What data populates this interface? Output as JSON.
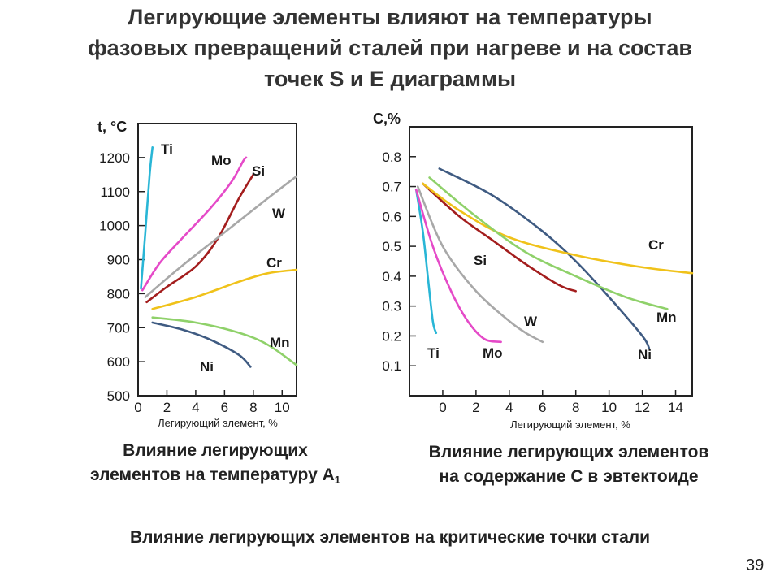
{
  "title": {
    "line1": "Легирующие элементы влияют на температуры",
    "line2": "фазовых превращений сталей при нагреве и на состав",
    "line3": "точек S и E диаграммы"
  },
  "caption_left": {
    "text": "Влияние легирующих",
    "text2": "элементов на температуру А",
    "sub": "1"
  },
  "caption_right": {
    "text": "Влияние легирующих элементов",
    "text2": "на содержание С в эвтектоиде"
  },
  "bottom_text": "Влияние легирующих элементов на критические точки стали",
  "page_number": "39",
  "chart_data": [
    {
      "type": "line",
      "ylabel": "t, °C",
      "xlabel": "Легирующий элемент, %",
      "xlim": [
        0,
        11
      ],
      "ylim": [
        500,
        1300
      ],
      "xticks": [
        "0",
        "2",
        "4",
        "6",
        "8",
        "10"
      ],
      "xtick_values": [
        0,
        2,
        4,
        6,
        8,
        10
      ],
      "yticks": [
        "500",
        "600",
        "700",
        "800",
        "900",
        "1000",
        "1100",
        "1200"
      ],
      "ytick_values": [
        500,
        600,
        700,
        800,
        900,
        1000,
        1100,
        1200
      ],
      "series": [
        {
          "name": "Ti",
          "color": "#29b6d6",
          "points": [
            [
              0.2,
              815
            ],
            [
              0.5,
              980
            ],
            [
              0.8,
              1150
            ],
            [
              1.0,
              1230
            ]
          ]
        },
        {
          "name": "Mo",
          "color": "#e54ac8",
          "points": [
            [
              0.3,
              810
            ],
            [
              1.5,
              890
            ],
            [
              3.0,
              960
            ],
            [
              5.0,
              1050
            ],
            [
              6.5,
              1130
            ],
            [
              7.3,
              1190
            ],
            [
              7.5,
              1200
            ]
          ]
        },
        {
          "name": "Si",
          "color": "#a31d1d",
          "points": [
            [
              0.6,
              775
            ],
            [
              2.0,
              820
            ],
            [
              4.0,
              880
            ],
            [
              5.5,
              960
            ],
            [
              7.0,
              1080
            ],
            [
              8.0,
              1150
            ]
          ]
        },
        {
          "name": "W",
          "color": "#a8a8a8",
          "points": [
            [
              0.5,
              790
            ],
            [
              3.0,
              880
            ],
            [
              6.0,
              980
            ],
            [
              9.0,
              1080
            ],
            [
              11.0,
              1145
            ]
          ]
        },
        {
          "name": "Cr",
          "color": "#f0c21a",
          "points": [
            [
              1.0,
              755
            ],
            [
              4.0,
              790
            ],
            [
              7.0,
              835
            ],
            [
              9.0,
              860
            ],
            [
              11.0,
              870
            ]
          ]
        },
        {
          "name": "Mn",
          "color": "#8fd16a",
          "points": [
            [
              1.0,
              730
            ],
            [
              4.0,
              715
            ],
            [
              7.0,
              685
            ],
            [
              9.0,
              650
            ],
            [
              11.0,
              590
            ]
          ]
        },
        {
          "name": "Ni",
          "color": "#3f5b82",
          "points": [
            [
              1.0,
              715
            ],
            [
              3.0,
              695
            ],
            [
              5.0,
              665
            ],
            [
              7.0,
              620
            ],
            [
              7.8,
              585
            ]
          ]
        }
      ],
      "annotations": [
        "Ti",
        "Mo",
        "Si",
        "W",
        "Cr",
        "Mn",
        "Ni"
      ]
    },
    {
      "type": "line",
      "ylabel": "C,%",
      "xlabel": "Легирующий элемент, %",
      "xlim": [
        -2,
        15
      ],
      "ylim": [
        0,
        0.9
      ],
      "xticks": [
        "0",
        "2",
        "4",
        "6",
        "8",
        "10",
        "12",
        "14"
      ],
      "xtick_values": [
        0,
        2,
        4,
        6,
        8,
        10,
        12,
        14
      ],
      "yticks": [
        "0.1",
        "0.2",
        "0.3",
        "0.4",
        "0.5",
        "0.6",
        "0.7",
        "0.8"
      ],
      "ytick_values": [
        0.1,
        0.2,
        0.3,
        0.4,
        0.5,
        0.6,
        0.7,
        0.8
      ],
      "series": [
        {
          "name": "Ti",
          "color": "#29b6d6",
          "points": [
            [
              -1.6,
              0.69
            ],
            [
              -1.2,
              0.55
            ],
            [
              -0.9,
              0.4
            ],
            [
              -0.6,
              0.25
            ],
            [
              -0.4,
              0.21
            ]
          ]
        },
        {
          "name": "Mo",
          "color": "#e54ac8",
          "points": [
            [
              -1.6,
              0.69
            ],
            [
              -0.6,
              0.5
            ],
            [
              0.5,
              0.35
            ],
            [
              1.5,
              0.25
            ],
            [
              2.5,
              0.19
            ],
            [
              3.5,
              0.18
            ]
          ]
        },
        {
          "name": "W",
          "color": "#a8a8a8",
          "points": [
            [
              -1.5,
              0.7
            ],
            [
              0,
              0.5
            ],
            [
              2.0,
              0.35
            ],
            [
              4.0,
              0.25
            ],
            [
              5.0,
              0.21
            ],
            [
              6.0,
              0.18
            ]
          ]
        },
        {
          "name": "Si",
          "color": "#a31d1d",
          "points": [
            [
              -1.2,
              0.71
            ],
            [
              1.0,
              0.6
            ],
            [
              3.0,
              0.52
            ],
            [
              5.0,
              0.44
            ],
            [
              7.0,
              0.37
            ],
            [
              8.0,
              0.35
            ]
          ]
        },
        {
          "name": "Ni",
          "color": "#3f5b82",
          "points": [
            [
              -0.2,
              0.76
            ],
            [
              3.0,
              0.67
            ],
            [
              6.0,
              0.55
            ],
            [
              8.0,
              0.45
            ],
            [
              10.0,
              0.33
            ],
            [
              12.0,
              0.2
            ],
            [
              12.4,
              0.16
            ]
          ]
        },
        {
          "name": "Cr",
          "color": "#f0c21a",
          "points": [
            [
              -1.2,
              0.71
            ],
            [
              1.0,
              0.62
            ],
            [
              4.0,
              0.53
            ],
            [
              8.0,
              0.47
            ],
            [
              12.0,
              0.43
            ],
            [
              15.0,
              0.41
            ]
          ]
        },
        {
          "name": "Mn",
          "color": "#8fd16a",
          "points": [
            [
              -0.8,
              0.73
            ],
            [
              2.0,
              0.6
            ],
            [
              5.0,
              0.48
            ],
            [
              8.0,
              0.4
            ],
            [
              11.0,
              0.33
            ],
            [
              13.5,
              0.29
            ]
          ]
        }
      ],
      "annotations": [
        "Ti",
        "Mo",
        "W",
        "Si",
        "Ni",
        "Cr",
        "Mn"
      ]
    }
  ]
}
